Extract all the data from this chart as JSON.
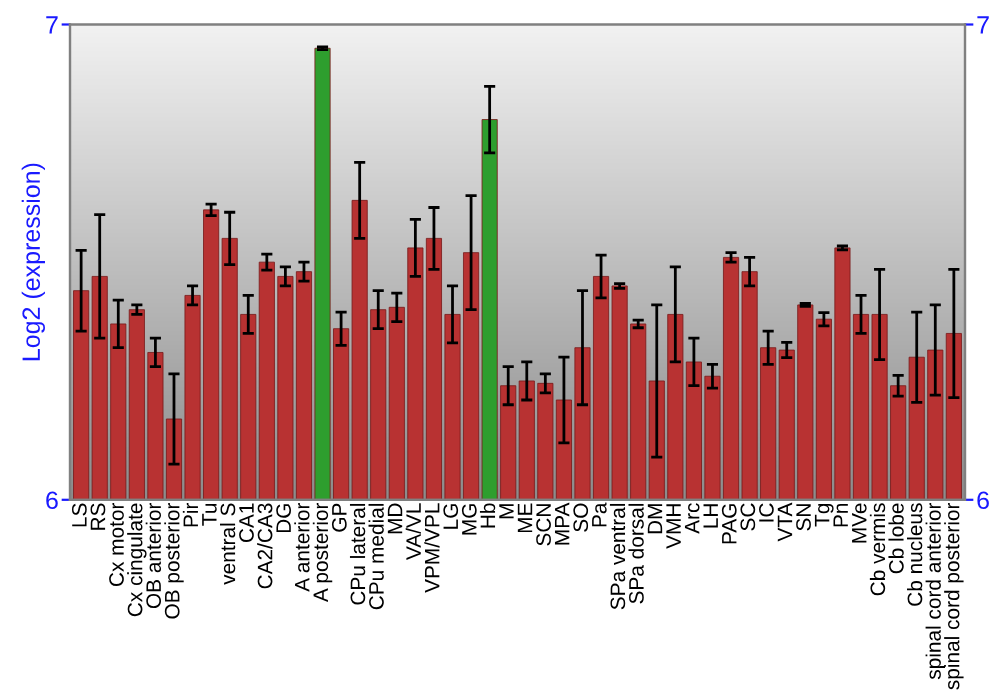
{
  "chart_data": {
    "type": "bar",
    "ylabel": "Log2 (expression)",
    "categories": [
      "LS",
      "RS",
      "Cx motor",
      "Cx cingulate",
      "OB anterior",
      "OB posterior",
      "Pir",
      "Tu",
      "ventral S",
      "CA1",
      "CA2/CA3",
      "DG",
      "A anterior",
      "A posterior",
      "GP",
      "CPu lateral",
      "CPu medial",
      "MD",
      "VA/VL",
      "VPM/VPL",
      "LG",
      "MG",
      "Hb",
      "M",
      "ME",
      "SCN",
      "MPA",
      "SO",
      "Pa",
      "SPa ventral",
      "SPa dorsal",
      "DM",
      "VMH",
      "Arc",
      "LH",
      "PAG",
      "SC",
      "IC",
      "VTA",
      "SN",
      "Tg",
      "Pn",
      "MVe",
      "Cb vermis",
      "Cb lobe",
      "Cb nucleus",
      "spinal cord anterior",
      "spinal cord posterior"
    ],
    "values": [
      6.44,
      6.47,
      6.37,
      6.4,
      6.31,
      6.17,
      6.43,
      6.61,
      6.55,
      6.39,
      6.5,
      6.47,
      6.48,
      6.95,
      6.36,
      6.63,
      6.4,
      6.405,
      6.53,
      6.55,
      6.39,
      6.52,
      6.8,
      6.24,
      6.25,
      6.245,
      6.21,
      6.32,
      6.47,
      6.45,
      6.37,
      6.25,
      6.39,
      6.29,
      6.26,
      6.51,
      6.48,
      6.32,
      6.315,
      6.41,
      6.38,
      6.53,
      6.39,
      6.39,
      6.24,
      6.3,
      6.315,
      6.35
    ],
    "errors": [
      0.085,
      0.13,
      0.05,
      0.01,
      0.03,
      0.095,
      0.02,
      0.012,
      0.055,
      0.04,
      0.017,
      0.02,
      0.02,
      0.003,
      0.035,
      0.08,
      0.04,
      0.03,
      0.06,
      0.065,
      0.06,
      0.12,
      0.07,
      0.04,
      0.04,
      0.02,
      0.09,
      0.12,
      0.045,
      0.005,
      0.008,
      0.16,
      0.1,
      0.05,
      0.025,
      0.01,
      0.03,
      0.035,
      0.016,
      0.003,
      0.014,
      0.004,
      0.04,
      0.095,
      0.022,
      0.095,
      0.095,
      0.135
    ],
    "colors": [
      "#b83232",
      "#b83232",
      "#b83232",
      "#b83232",
      "#b83232",
      "#b83232",
      "#b83232",
      "#b83232",
      "#b83232",
      "#b83232",
      "#b83232",
      "#b83232",
      "#b83232",
      "#2e9e2e",
      "#b83232",
      "#b83232",
      "#b83232",
      "#b83232",
      "#b83232",
      "#b83232",
      "#b83232",
      "#b83232",
      "#2e9e2e",
      "#b83232",
      "#b83232",
      "#b83232",
      "#b83232",
      "#b83232",
      "#b83232",
      "#b83232",
      "#b83232",
      "#b83232",
      "#b83232",
      "#b83232",
      "#b83232",
      "#b83232",
      "#b83232",
      "#b83232",
      "#b83232",
      "#b83232",
      "#b83232",
      "#b83232",
      "#b83232",
      "#b83232",
      "#b83232",
      "#b83232",
      "#b83232",
      "#b83232"
    ],
    "ylim": [
      6,
      7
    ],
    "yticks": [
      6,
      7
    ],
    "y2lim": [
      6,
      7
    ],
    "y2ticks": [
      6,
      7
    ],
    "grid": false
  }
}
